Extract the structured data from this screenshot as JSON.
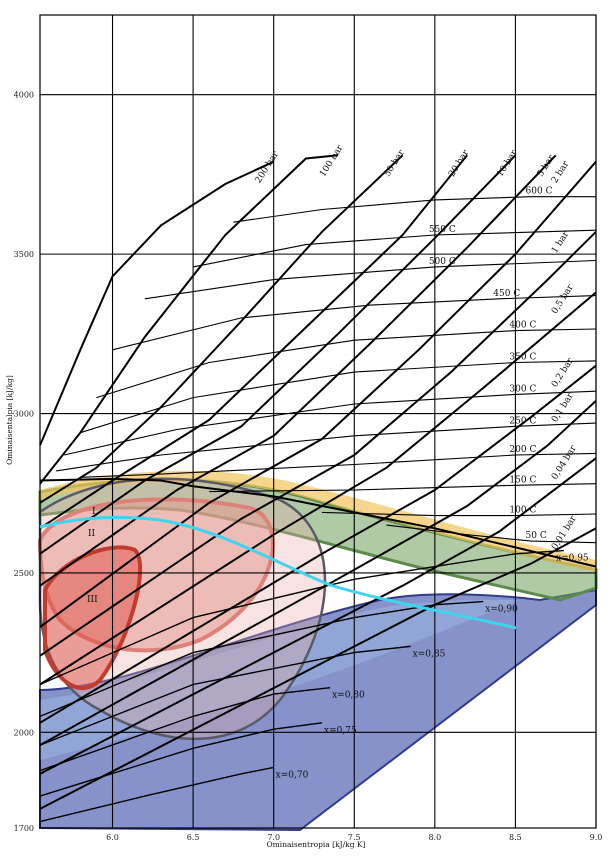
{
  "chart_data": {
    "type": "line",
    "title": "",
    "xlabel": "Ominaisentropia [kJ/kg K]",
    "ylabel": "Ominaisentalpia [kJ/kg]",
    "xlim": [
      5.55,
      9.0
    ],
    "ylim": [
      1700,
      4250
    ],
    "grid": true,
    "x_ticks": [
      6.0,
      6.5,
      7.0,
      7.5,
      8.0,
      8.5,
      9.0
    ],
    "x_tick_labels": [
      "6.0",
      "6.5",
      "7.0",
      "7.5",
      "8.0",
      "8.5",
      "9.0"
    ],
    "y_ticks": [
      1700,
      2000,
      2500,
      3000,
      3500,
      4000
    ],
    "y_tick_labels": [
      "1700",
      "2000",
      "2500",
      "3000",
      "3500",
      "4000"
    ],
    "saturation_line": [
      [
        5.55,
        2790
      ],
      [
        6.0,
        2795
      ],
      [
        6.3,
        2790
      ],
      [
        6.5,
        2772
      ],
      [
        7.0,
        2740
      ],
      [
        7.5,
        2690
      ],
      [
        8.0,
        2640
      ],
      [
        8.5,
        2580
      ],
      [
        9.0,
        2520
      ]
    ],
    "isobars": [
      {
        "label": "200 bar",
        "points": [
          [
            5.55,
            2900
          ],
          [
            5.8,
            3200
          ],
          [
            6.0,
            3430
          ],
          [
            6.3,
            3590
          ],
          [
            6.7,
            3720
          ],
          [
            7.0,
            3790
          ]
        ]
      },
      {
        "label": "100 bar",
        "points": [
          [
            5.55,
            2780
          ],
          [
            5.8,
            2940
          ],
          [
            6.2,
            3240
          ],
          [
            6.7,
            3560
          ],
          [
            7.2,
            3800
          ],
          [
            7.4,
            3810
          ]
        ]
      },
      {
        "label": "50 bar",
        "points": [
          [
            5.55,
            2720
          ],
          [
            5.9,
            2830
          ],
          [
            6.3,
            3020
          ],
          [
            6.8,
            3290
          ],
          [
            7.3,
            3570
          ],
          [
            7.8,
            3810
          ]
        ]
      },
      {
        "label": "20 bar",
        "points": [
          [
            5.55,
            2640
          ],
          [
            6.0,
            2790
          ],
          [
            6.6,
            2980
          ],
          [
            7.2,
            3270
          ],
          [
            7.8,
            3560
          ],
          [
            8.2,
            3810
          ]
        ]
      },
      {
        "label": "10 bar",
        "points": [
          [
            5.55,
            2560
          ],
          [
            6.2,
            2790
          ],
          [
            6.8,
            2960
          ],
          [
            7.4,
            3250
          ],
          [
            8.0,
            3550
          ],
          [
            8.5,
            3810
          ]
        ]
      },
      {
        "label": "5 bar",
        "points": [
          [
            5.55,
            2460
          ],
          [
            6.4,
            2760
          ],
          [
            7.0,
            2930
          ],
          [
            7.6,
            3220
          ],
          [
            8.2,
            3520
          ],
          [
            8.75,
            3810
          ]
        ]
      },
      {
        "label": "2 bar",
        "points": [
          [
            5.55,
            2330
          ],
          [
            6.6,
            2720
          ],
          [
            7.3,
            2920
          ],
          [
            7.9,
            3200
          ],
          [
            8.5,
            3500
          ],
          [
            9.0,
            3790
          ]
        ]
      },
      {
        "label": "1 bar",
        "points": [
          [
            5.55,
            2240
          ],
          [
            6.8,
            2670
          ],
          [
            7.5,
            2870
          ],
          [
            8.1,
            3130
          ],
          [
            8.7,
            3420
          ],
          [
            9.0,
            3570
          ]
        ]
      },
      {
        "label": "0,5 bar",
        "points": [
          [
            5.55,
            2150
          ],
          [
            7.0,
            2620
          ],
          [
            7.7,
            2830
          ],
          [
            8.3,
            3080
          ],
          [
            9.0,
            3380
          ]
        ]
      },
      {
        "label": "0,2 bar",
        "points": [
          [
            5.55,
            2030
          ],
          [
            7.3,
            2560
          ],
          [
            8.0,
            2760
          ],
          [
            8.6,
            2990
          ],
          [
            9.0,
            3150
          ]
        ]
      },
      {
        "label": "0,1 bar",
        "points": [
          [
            5.55,
            1960
          ],
          [
            7.5,
            2510
          ],
          [
            8.2,
            2710
          ],
          [
            8.7,
            2900
          ],
          [
            9.0,
            3040
          ]
        ]
      },
      {
        "label": "0,04 bar",
        "points": [
          [
            5.55,
            1870
          ],
          [
            7.8,
            2460
          ],
          [
            8.4,
            2630
          ],
          [
            9.0,
            2860
          ]
        ]
      },
      {
        "label": "0,01 bar",
        "points": [
          [
            5.55,
            1760
          ],
          [
            8.0,
            2400
          ],
          [
            8.6,
            2530
          ],
          [
            9.0,
            2640
          ]
        ]
      }
    ],
    "isotherms": [
      {
        "label": "600 C",
        "points": [
          [
            6.75,
            3600
          ],
          [
            7.3,
            3640
          ],
          [
            8.0,
            3670
          ],
          [
            8.6,
            3680
          ],
          [
            9.0,
            3680
          ]
        ]
      },
      {
        "label": "550 C",
        "points": [
          [
            6.5,
            3460
          ],
          [
            7.2,
            3530
          ],
          [
            8.0,
            3560
          ],
          [
            9.0,
            3575
          ]
        ]
      },
      {
        "label": "500 C",
        "points": [
          [
            6.2,
            3360
          ],
          [
            7.0,
            3420
          ],
          [
            8.0,
            3460
          ],
          [
            9.0,
            3480
          ]
        ]
      },
      {
        "label": "450 C",
        "points": [
          [
            6.0,
            3200
          ],
          [
            6.8,
            3300
          ],
          [
            7.6,
            3340
          ],
          [
            8.4,
            3360
          ],
          [
            9.0,
            3370
          ]
        ]
      },
      {
        "label": "400 C",
        "points": [
          [
            5.9,
            3050
          ],
          [
            6.6,
            3160
          ],
          [
            7.5,
            3230
          ],
          [
            8.5,
            3260
          ],
          [
            9.0,
            3265
          ]
        ]
      },
      {
        "label": "350 C",
        "points": [
          [
            5.8,
            2940
          ],
          [
            6.5,
            3050
          ],
          [
            7.5,
            3130
          ],
          [
            8.5,
            3160
          ],
          [
            9.0,
            3165
          ]
        ]
      },
      {
        "label": "300 C",
        "points": [
          [
            5.7,
            2870
          ],
          [
            6.4,
            2950
          ],
          [
            7.5,
            3030
          ],
          [
            8.5,
            3060
          ],
          [
            9.0,
            3070
          ]
        ]
      },
      {
        "label": "250 C",
        "points": [
          [
            5.65,
            2820
          ],
          [
            6.3,
            2870
          ],
          [
            7.5,
            2930
          ],
          [
            8.5,
            2960
          ],
          [
            9.0,
            2970
          ]
        ]
      },
      {
        "label": "200 C",
        "points": [
          [
            5.8,
            2800
          ],
          [
            6.3,
            2810
          ],
          [
            7.5,
            2840
          ],
          [
            8.5,
            2870
          ],
          [
            9.0,
            2875
          ]
        ]
      },
      {
        "label": "150 C",
        "points": [
          [
            6.6,
            2755
          ],
          [
            7.5,
            2760
          ],
          [
            8.5,
            2775
          ],
          [
            9.0,
            2780
          ]
        ]
      },
      {
        "label": "100 C",
        "points": [
          [
            7.3,
            2690
          ],
          [
            8.0,
            2680
          ],
          [
            8.5,
            2680
          ],
          [
            9.0,
            2685
          ]
        ]
      },
      {
        "label": "50 C",
        "points": [
          [
            7.7,
            2650
          ],
          [
            8.2,
            2620
          ],
          [
            8.6,
            2600
          ],
          [
            9.0,
            2595
          ]
        ]
      }
    ],
    "quality_lines": [
      {
        "label": "x=0,95",
        "points": [
          [
            5.55,
            2150
          ],
          [
            6.5,
            2360
          ],
          [
            7.5,
            2480
          ],
          [
            8.5,
            2560
          ],
          [
            8.8,
            2570
          ]
        ]
      },
      {
        "label": "x=0,90",
        "points": [
          [
            5.55,
            2050
          ],
          [
            6.5,
            2250
          ],
          [
            7.5,
            2360
          ],
          [
            8.0,
            2400
          ],
          [
            8.3,
            2410
          ]
        ]
      },
      {
        "label": "x=0,85",
        "points": [
          [
            5.55,
            1960
          ],
          [
            6.5,
            2150
          ],
          [
            7.5,
            2250
          ],
          [
            7.85,
            2270
          ]
        ]
      },
      {
        "label": "x=0,80",
        "points": [
          [
            5.55,
            1880
          ],
          [
            6.5,
            2050
          ],
          [
            7.0,
            2120
          ],
          [
            7.35,
            2140
          ]
        ]
      },
      {
        "label": "x=0,75",
        "points": [
          [
            5.55,
            1800
          ],
          [
            6.5,
            1950
          ],
          [
            7.0,
            2010
          ],
          [
            7.3,
            2030
          ]
        ]
      },
      {
        "label": "x=0,70",
        "points": [
          [
            5.55,
            1720
          ],
          [
            6.2,
            1800
          ],
          [
            6.8,
            1870
          ],
          [
            7.0,
            1890
          ]
        ]
      }
    ],
    "regions": [
      {
        "label": "I",
        "color": "#5f8f4e"
      },
      {
        "label": "II",
        "color": "#d85a4a"
      },
      {
        "label": "III",
        "color": "#c23b2d"
      }
    ],
    "colors": {
      "grid": "#000000",
      "curves": "#000000",
      "yellow_band": "#f2c55c",
      "green_band": "#6f9f5c",
      "red_region": "#d9473b",
      "blue_region": "#3c4fa8",
      "cyan_line": "#40d4ee"
    }
  }
}
